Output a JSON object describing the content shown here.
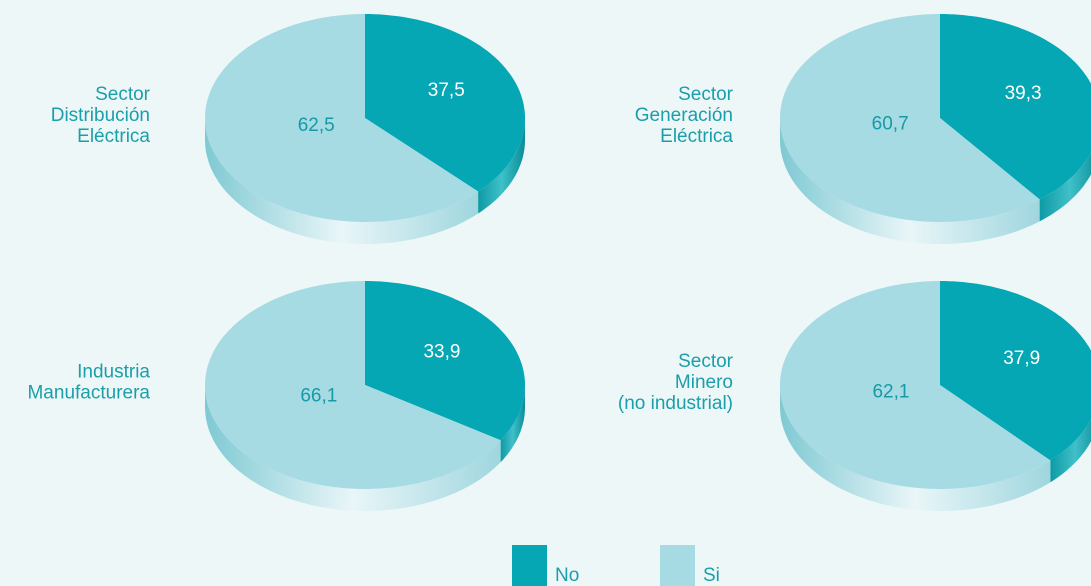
{
  "chart_data": [
    {
      "type": "pie",
      "title": [
        "Sector",
        "Distribución",
        "Eléctrica"
      ],
      "categories": [
        "No",
        "Si"
      ],
      "values": [
        37.5,
        62.5
      ],
      "value_labels": [
        "37,5",
        "62,5"
      ],
      "colors": [
        "#04a7b3",
        "#a6dbe3"
      ]
    },
    {
      "type": "pie",
      "title": [
        "Sector",
        "Generación",
        "Eléctrica"
      ],
      "categories": [
        "No",
        "Si"
      ],
      "values": [
        39.3,
        60.7
      ],
      "value_labels": [
        "39,3",
        "60,7"
      ],
      "colors": [
        "#04a7b3",
        "#a6dbe3"
      ]
    },
    {
      "type": "pie",
      "title": [
        "Industria",
        "Manufacturera"
      ],
      "categories": [
        "No",
        "Si"
      ],
      "values": [
        33.9,
        66.1
      ],
      "value_labels": [
        "33,9",
        "66,1"
      ],
      "colors": [
        "#04a7b3",
        "#a6dbe3"
      ]
    },
    {
      "type": "pie",
      "title": [
        "Sector",
        "Minero",
        "(no industrial)"
      ],
      "categories": [
        "No",
        "Si"
      ],
      "values": [
        37.9,
        62.1
      ],
      "value_labels": [
        "37,9",
        "62,1"
      ],
      "colors": [
        "#04a7b3",
        "#a6dbe3"
      ]
    }
  ]
}
